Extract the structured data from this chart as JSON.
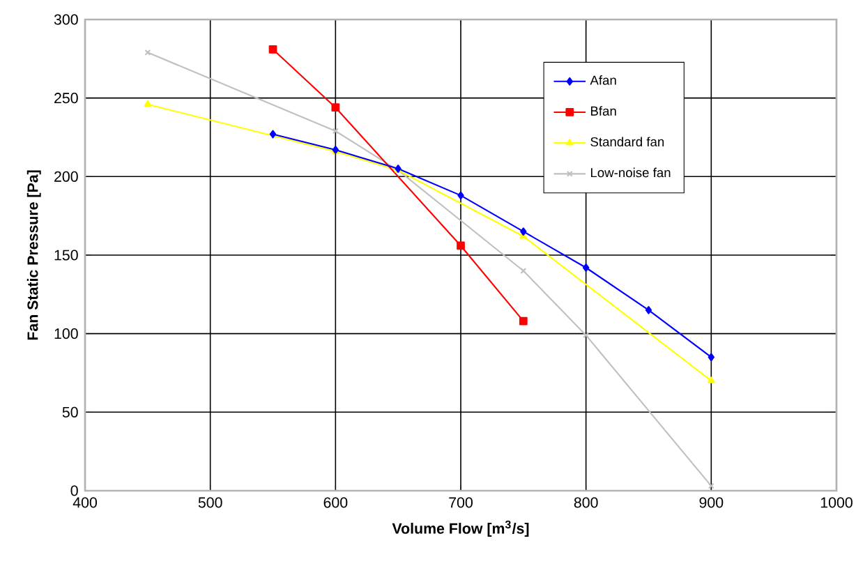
{
  "chart_data": {
    "type": "line",
    "xlabel": "Volume Flow [m$^{3}$/s]",
    "ylabel": "Fan Static Pressure [Pa]",
    "xlim": [
      400,
      1000
    ],
    "xticks": [
      400,
      500,
      600,
      700,
      800,
      900,
      1000
    ],
    "ylim": [
      0,
      300
    ],
    "yticks": [
      0,
      50,
      100,
      150,
      200,
      250,
      300
    ],
    "grid": true,
    "legend": "top right",
    "line_style": "solid",
    "series": [
      {
        "name": "Afan",
        "color": "#0000ff",
        "marker": "diamond",
        "x": [
          550,
          600,
          650,
          700,
          750,
          800,
          850,
          900
        ],
        "values": [
          227,
          217,
          205,
          188,
          165,
          142,
          115,
          85
        ]
      },
      {
        "name": "Bfan",
        "color": "#ff0000",
        "marker": "square",
        "x": [
          550,
          600,
          700,
          750
        ],
        "values": [
          281,
          244,
          156,
          108
        ]
      },
      {
        "name": "Standard fan",
        "color": "#ffff00",
        "marker": "triangle",
        "x": [
          450,
          600,
          650,
          750,
          900
        ],
        "values": [
          246,
          216,
          204,
          162,
          70
        ]
      },
      {
        "name": "Low-noise fan",
        "color": "#c0c0c0",
        "marker": "cross",
        "x": [
          450,
          600,
          650,
          750,
          800,
          900
        ],
        "values": [
          279,
          229,
          204,
          140,
          99,
          3
        ]
      }
    ]
  }
}
